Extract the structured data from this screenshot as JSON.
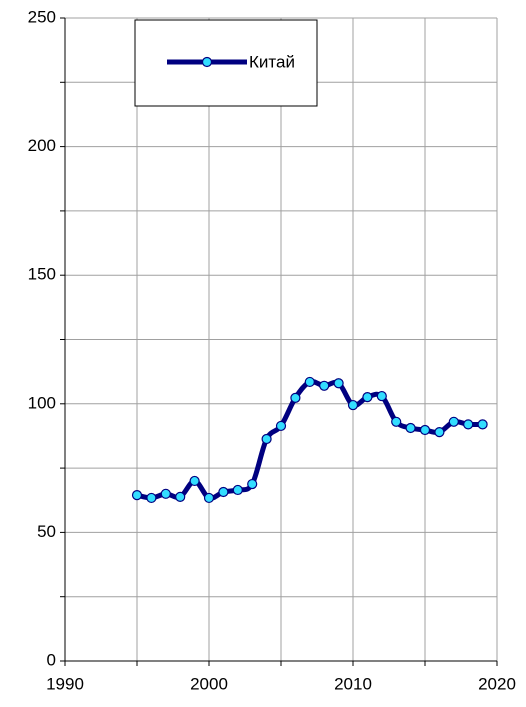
{
  "chart_data": {
    "type": "line",
    "x": [
      1995,
      1996,
      1997,
      1998,
      1999,
      2000,
      2001,
      2002,
      2003,
      2004,
      2005,
      2006,
      2007,
      2008,
      2009,
      2010,
      2011,
      2012,
      2013,
      2014,
      2015,
      2016,
      2017,
      2018,
      2019
    ],
    "series": [
      {
        "name": "Китай",
        "color": "#000080",
        "marker_color": "#33ddff",
        "values": [
          64.5,
          63.4,
          65,
          63.8,
          70,
          63.4,
          65.7,
          66.5,
          68.8,
          86.3,
          91.4,
          102.3,
          108.5,
          107,
          108,
          99.5,
          102.6,
          103,
          93,
          90.6,
          89.8,
          89,
          93,
          92,
          92
        ]
      }
    ],
    "xlim": [
      1990,
      2020
    ],
    "xticks": [
      1990,
      2000,
      2010,
      2020
    ],
    "xminor_ticks": [
      1995,
      2005,
      2015
    ],
    "ylim": [
      0,
      250
    ],
    "yticks": [
      0,
      50,
      100,
      150,
      200,
      250
    ],
    "yminor_ticks": [
      25,
      75,
      125,
      175,
      225
    ],
    "grid": true,
    "legend": "top-left"
  }
}
